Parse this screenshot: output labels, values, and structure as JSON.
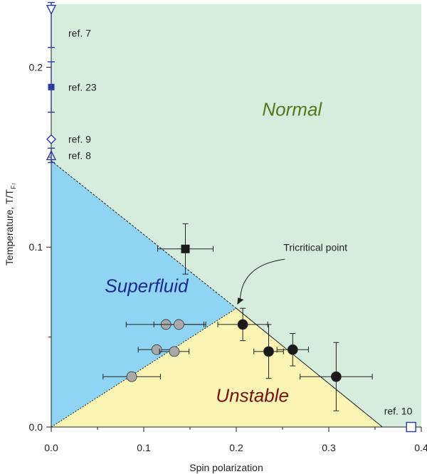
{
  "chart_data": {
    "type": "scatter",
    "title": "",
    "xlabel": "Spin polarization",
    "ylabel": "Temperature, T/T",
    "ylabel_sub": "F↑",
    "xlim": [
      0.0,
      0.4
    ],
    "ylim": [
      0.0,
      0.235
    ],
    "x_ticks": [
      0.0,
      0.1,
      0.2,
      0.3,
      0.4
    ],
    "x_tick_labels": [
      "0.0",
      "0.1",
      "0.2",
      "0.3",
      "0.4"
    ],
    "y_ticks": [
      0.0,
      0.1,
      0.2
    ],
    "y_tick_labels": [
      "0.0",
      "0.1",
      "0.2"
    ],
    "y_minor_ticks": [
      0.05,
      0.15
    ],
    "regions": [
      {
        "name": "Normal",
        "color": "#d6ecdc",
        "text_color": "#4e7a1c",
        "label_pos": [
          0.228,
          0.173
        ]
      },
      {
        "name": "Superfluid",
        "color": "#8fd5f3",
        "text_color": "#1c2a8c",
        "label_pos": [
          0.058,
          0.075
        ]
      },
      {
        "name": "Unstable",
        "color": "#fbf5b5",
        "text_color": "#7a1010",
        "label_pos": [
          0.178,
          0.014
        ]
      }
    ],
    "boundaries": {
      "superfluid_normal": [
        [
          0.0,
          0.148
        ],
        [
          0.2,
          0.066
        ]
      ],
      "superfluid_unstable": [
        [
          0.0,
          0.0
        ],
        [
          0.2,
          0.066
        ]
      ],
      "unstable_normal": [
        [
          0.2,
          0.066
        ],
        [
          0.358,
          0.0
        ]
      ]
    },
    "series": [
      {
        "marker": "circle",
        "color": "#1a1a1a",
        "points": [
          {
            "x": 0.207,
            "y": 0.057,
            "xerr": 0.027,
            "yerr": 0.009
          },
          {
            "x": 0.235,
            "y": 0.042,
            "xerr": 0.016,
            "yerr": 0.015
          },
          {
            "x": 0.261,
            "y": 0.043,
            "xerr": 0.017,
            "yerr": 0.009
          },
          {
            "x": 0.308,
            "y": 0.028,
            "xerr": 0.039,
            "yerr": 0.019
          }
        ]
      },
      {
        "marker": "circle",
        "color": "#a9a9ab",
        "points": [
          {
            "x": 0.124,
            "y": 0.057,
            "xerr": 0.043,
            "yerr": 0.0
          },
          {
            "x": 0.138,
            "y": 0.057,
            "xerr": 0.027,
            "yerr": 0.0
          },
          {
            "x": 0.114,
            "y": 0.043,
            "xerr": 0.02,
            "yerr": 0.0
          },
          {
            "x": 0.133,
            "y": 0.042,
            "xerr": 0.016,
            "yerr": 0.0
          },
          {
            "x": 0.087,
            "y": 0.028,
            "xerr": 0.031,
            "yerr": 0.0
          }
        ]
      },
      {
        "marker": "square",
        "color": "#1a1a1a",
        "points": [
          {
            "x": 0.145,
            "y": 0.099,
            "xerr": 0.03,
            "yerr": 0.014
          }
        ]
      }
    ],
    "references": [
      {
        "label": "ref. 7",
        "marker": "triangle-down-open",
        "x": 0.0,
        "y": 0.232,
        "yerr_low": 0.021,
        "yerr_high": 0.004,
        "label_y": 0.219
      },
      {
        "label": "ref. 23",
        "marker": "square-filled",
        "x": 0.0,
        "y": 0.189,
        "yerr_low": 0.014,
        "yerr_high": 0.014,
        "label_y": 0.189
      },
      {
        "label": "ref. 9",
        "marker": "diamond-open",
        "x": 0.0,
        "y": 0.16,
        "yerr_low": 0.0,
        "yerr_high": 0.0,
        "label_y": 0.16
      },
      {
        "label": "ref. 8",
        "marker": "triangle-up-open",
        "x": 0.0,
        "y": 0.151,
        "yerr_low": 0.004,
        "yerr_high": 0.004,
        "label_y": 0.151
      },
      {
        "label": "ref. 10",
        "marker": "square-open",
        "x": 0.389,
        "y": 0.0,
        "yerr_low": 0.0,
        "yerr_high": 0.0,
        "label_y": 0.009
      }
    ],
    "reference_color": "#2a3aa0",
    "annotations": [
      {
        "text": "Tricritical point",
        "text_pos": [
          0.251,
          0.098
        ],
        "arrow_to": [
          0.201,
          0.068
        ]
      }
    ]
  }
}
